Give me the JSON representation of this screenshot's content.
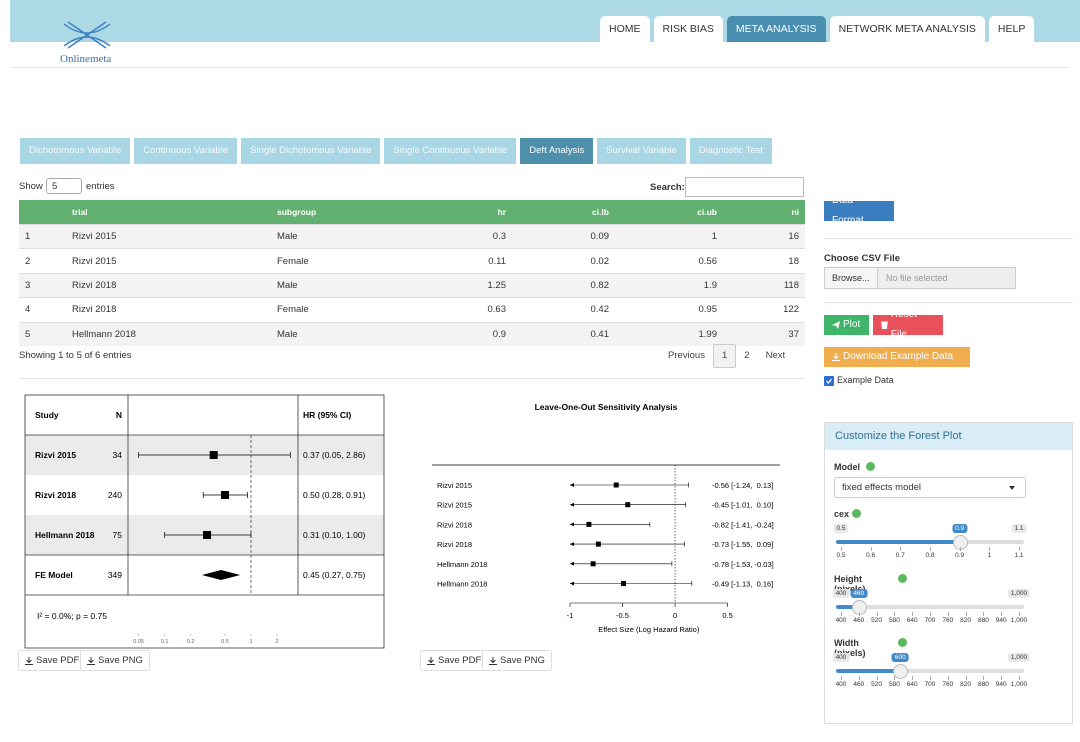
{
  "header": {
    "brand": "Onlinemeta",
    "nav": [
      "HOME",
      "RISK BIAS",
      "META ANALYSIS",
      "NETWORK META ANALYSIS",
      "HELP"
    ],
    "active_nav": 2
  },
  "tabs": {
    "items": [
      "Dichotomous Variable",
      "Continuous Variable",
      "Single Dichotomous Variable",
      "Single Continuous Variable",
      "Deft Analysis",
      "Survival Variable",
      "Diagnostic Test"
    ],
    "active": 4
  },
  "table": {
    "show_label": "Show",
    "page_length": 5,
    "entries_label": "entries",
    "search_label": "Search:",
    "columns": [
      "trial",
      "subgroup",
      "hr",
      "ci.lb",
      "ci.ub",
      "ni"
    ],
    "rows": [
      [
        1,
        "Rizvi 2015",
        "Male",
        0.3,
        0.09,
        1,
        16
      ],
      [
        2,
        "Rizvi 2015",
        "Female",
        0.11,
        0.02,
        0.56,
        18
      ],
      [
        3,
        "Rizvi 2018",
        "Male",
        1.25,
        0.82,
        1.9,
        118
      ],
      [
        4,
        "Rizvi 2018",
        "Female",
        0.63,
        0.42,
        0.95,
        122
      ],
      [
        5,
        "Hellmann 2018",
        "Male",
        0.9,
        0.41,
        1.99,
        37
      ]
    ],
    "info": "Showing 1 to 5 of 6 entries",
    "pagination": [
      "Previous",
      1,
      2,
      "Next"
    ],
    "current_page": 1
  },
  "forest_plot": {
    "headers": [
      "Study",
      "N",
      "HR (95% CI)"
    ],
    "studies": [
      {
        "study": "Rizvi 2015",
        "n": 34,
        "hr": 0.37,
        "lo": 0.05,
        "hi": 2.86,
        "label": "0.37 (0.05, 2.86)"
      },
      {
        "study": "Rizvi 2018",
        "n": 240,
        "hr": 0.5,
        "lo": 0.28,
        "hi": 0.91,
        "label": "0.50 (0.28, 0.91)"
      },
      {
        "study": "Hellmann 2018",
        "n": 75,
        "hr": 0.31,
        "lo": 0.1,
        "hi": 1,
        "label": "0.31 (0.10, 1.00)"
      }
    ],
    "summary": {
      "study": "FE Model",
      "n": 349,
      "hr": 0.45,
      "lo": 0.27,
      "hi": 0.75,
      "label": "0.45 (0.27, 0.75)"
    },
    "heterogeneity": "I² = 0.0%; p = 0.75",
    "log_scale": true,
    "xlim": [
      0.0377,
      3.5
    ],
    "xticks": [
      0.05,
      0.1,
      0.2,
      0.5,
      1,
      2
    ],
    "reference": 1
  },
  "loo_plot": {
    "title": "Leave-One-Out Sensitivity Analysis",
    "rows": [
      {
        "label": "Rizvi 2015",
        "est": -0.56,
        "lo": -1.24,
        "hi": 0.13,
        "text": "-0.56 [-1.24,  0.13]"
      },
      {
        "label": "Rizvi 2015",
        "est": -0.45,
        "lo": -1.01,
        "hi": 0.1,
        "text": "-0.45 [-1.01,  0.10]"
      },
      {
        "label": "Rizvi 2018",
        "est": -0.82,
        "lo": -1.41,
        "hi": -0.24,
        "text": "-0.82 [-1.41, -0.24]"
      },
      {
        "label": "Rizvi 2018",
        "est": -0.73,
        "lo": -1.55,
        "hi": 0.09,
        "text": "-0.73 [-1.55,  0.09]"
      },
      {
        "label": "Hellmann 2018",
        "est": -0.78,
        "lo": -1.53,
        "hi": -0.03,
        "text": "-0.78 [-1.53, -0.03]"
      },
      {
        "label": "Hellmann 2018",
        "est": -0.49,
        "lo": -1.13,
        "hi": 0.16,
        "text": "-0.49 [-1.13,  0.16]"
      }
    ],
    "xlim": [
      -1,
      0.98
    ],
    "xticks": [
      -1,
      -0.5,
      0,
      0.5
    ],
    "xlabel": "Effect Size (Log Hazard Ratio)",
    "reference": 0
  },
  "save_buttons": [
    "Save PDF",
    "Save PNG"
  ],
  "sidebar": {
    "data_format": "Data Format",
    "file_label": "Choose CSV File",
    "browse": "Browse...",
    "no_file": "No file selected",
    "plot": "Plot",
    "reset": "Reset File",
    "download": "Download Example Data",
    "example": "Example Data",
    "example_checked": true,
    "card_title": "Customize the Forest Plot",
    "model_label": "Model",
    "model_value": "fixed effects model",
    "sliders": [
      {
        "label": "cex",
        "min": 0.5,
        "max": 1.1,
        "value": 0.9,
        "ticks": [
          0.5,
          0.6,
          0.7,
          0.8,
          0.9,
          1,
          1.1
        ]
      },
      {
        "label": "Height (pixels)",
        "min": 400,
        "max": {
          "value": 1000,
          "label": "1,000"
        },
        "value": 460,
        "ticks": [
          400,
          460,
          520,
          580,
          640,
          700,
          760,
          820,
          880,
          940,
          {
            "value": 1000,
            "label": "1,000"
          }
        ]
      },
      {
        "label": "Width (pixels)",
        "min": 400,
        "max": {
          "value": 1000,
          "label": "1,000"
        },
        "value": 600,
        "ticks": [
          400,
          460,
          520,
          580,
          640,
          700,
          760,
          820,
          880,
          940,
          {
            "value": 1000,
            "label": "1,000"
          }
        ]
      }
    ]
  }
}
